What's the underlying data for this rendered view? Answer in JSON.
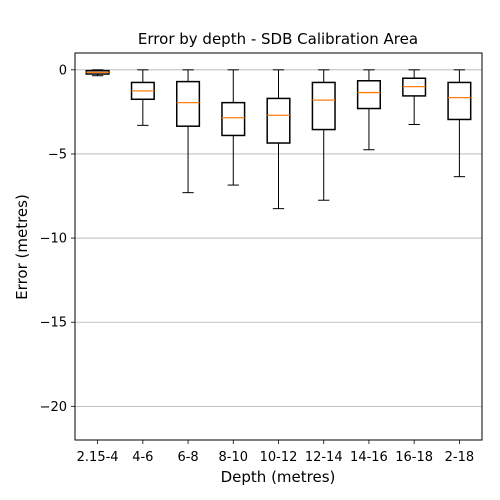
{
  "chart_data": {
    "type": "box",
    "title": "Error by depth - SDB Calibration Area",
    "xlabel": "Depth (metres)",
    "ylabel": "Error (metres)",
    "ylim": [
      -22,
      1
    ],
    "yticks": [
      0,
      -5,
      -10,
      -15,
      -20
    ],
    "ytick_labels": [
      "0",
      "−5",
      "−10",
      "−15",
      "−20"
    ],
    "grid": "y",
    "colors": {
      "box": "#000000",
      "median": "#ff7f0e",
      "grid": "#b0b0b0"
    },
    "categories": [
      "2.15-4",
      "4-6",
      "6-8",
      "8-10",
      "10-12",
      "12-14",
      "14-16",
      "16-18",
      "2-18"
    ],
    "boxes": [
      {
        "whisker_low": -0.35,
        "q1": -0.25,
        "median": -0.15,
        "q3": -0.05,
        "whisker_high": 0.0
      },
      {
        "whisker_low": -3.3,
        "q1": -1.75,
        "median": -1.25,
        "q3": -0.75,
        "whisker_high": 0.0
      },
      {
        "whisker_low": -7.3,
        "q1": -3.35,
        "median": -1.95,
        "q3": -0.7,
        "whisker_high": 0.0
      },
      {
        "whisker_low": -6.85,
        "q1": -3.9,
        "median": -2.85,
        "q3": -1.95,
        "whisker_high": 0.0
      },
      {
        "whisker_low": -8.25,
        "q1": -4.35,
        "median": -2.7,
        "q3": -1.7,
        "whisker_high": 0.0
      },
      {
        "whisker_low": -7.75,
        "q1": -3.55,
        "median": -1.8,
        "q3": -0.75,
        "whisker_high": 0.0
      },
      {
        "whisker_low": -4.75,
        "q1": -2.3,
        "median": -1.35,
        "q3": -0.65,
        "whisker_high": 0.0
      },
      {
        "whisker_low": -3.25,
        "q1": -1.55,
        "median": -1.0,
        "q3": -0.5,
        "whisker_high": 0.0
      },
      {
        "whisker_low": -6.35,
        "q1": -2.95,
        "median": -1.65,
        "q3": -0.75,
        "whisker_high": 0.0
      }
    ]
  }
}
